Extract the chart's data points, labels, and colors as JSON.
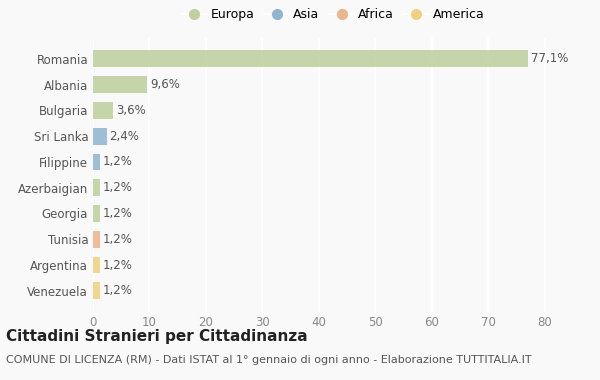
{
  "countries": [
    "Romania",
    "Albania",
    "Bulgaria",
    "Sri Lanka",
    "Filippine",
    "Azerbaigian",
    "Georgia",
    "Tunisia",
    "Argentina",
    "Venezuela"
  ],
  "values": [
    77.1,
    9.6,
    3.6,
    2.4,
    1.2,
    1.2,
    1.2,
    1.2,
    1.2,
    1.2
  ],
  "labels": [
    "77,1%",
    "9,6%",
    "3,6%",
    "2,4%",
    "1,2%",
    "1,2%",
    "1,2%",
    "1,2%",
    "1,2%",
    "1,2%"
  ],
  "continents": [
    "Europa",
    "Europa",
    "Europa",
    "Asia",
    "Asia",
    "Europa",
    "Europa",
    "Africa",
    "America",
    "America"
  ],
  "colors": {
    "Europa": "#b5c98e",
    "Asia": "#7eaac8",
    "Africa": "#e8a87c",
    "America": "#f0c96e"
  },
  "legend_labels": [
    "Europa",
    "Asia",
    "Africa",
    "America"
  ],
  "legend_colors": [
    "#b5c98e",
    "#7eaac8",
    "#e8a87c",
    "#f0c96e"
  ],
  "title": "Cittadini Stranieri per Cittadinanza",
  "subtitle": "COMUNE DI LICENZA (RM) - Dati ISTAT al 1° gennaio di ogni anno - Elaborazione TUTTITALIA.IT",
  "xlim": [
    0,
    85
  ],
  "xticks": [
    0,
    10,
    20,
    30,
    40,
    50,
    60,
    70,
    80
  ],
  "background_color": "#f9f9f9",
  "grid_color": "#ffffff",
  "bar_height": 0.65,
  "title_fontsize": 11,
  "subtitle_fontsize": 8,
  "tick_fontsize": 8.5,
  "label_fontsize": 8.5
}
